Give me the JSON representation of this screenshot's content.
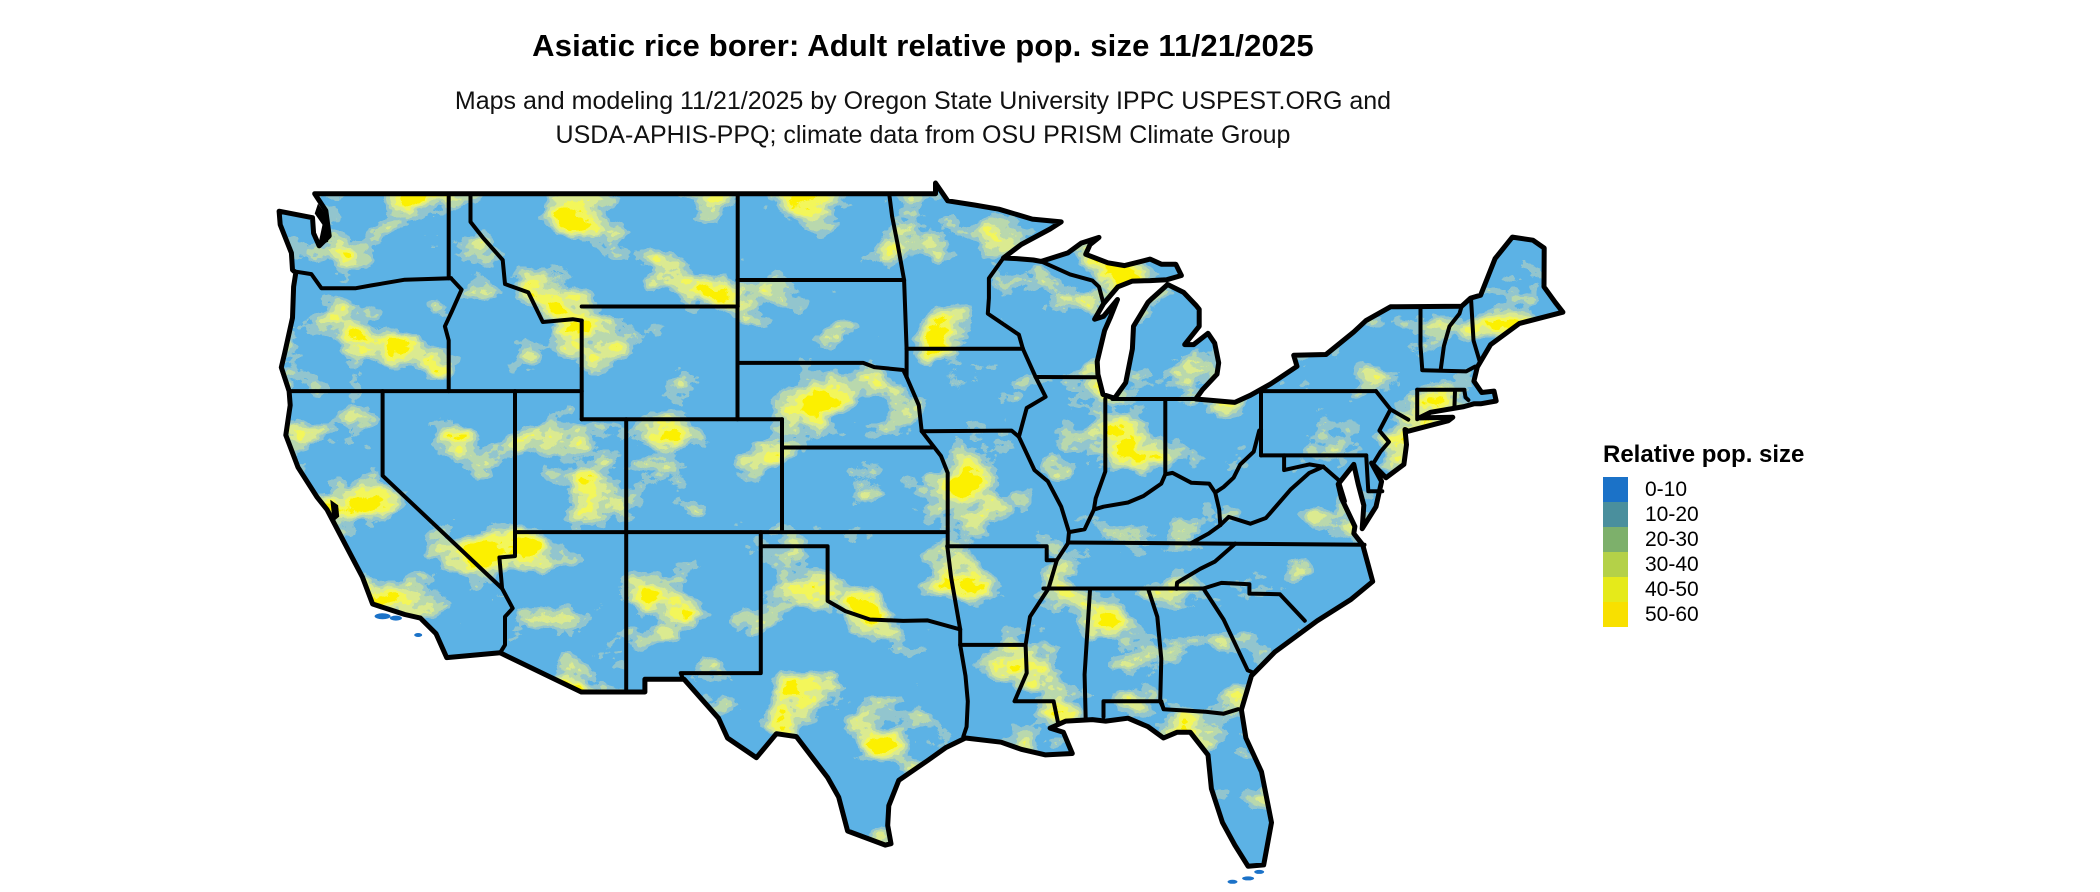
{
  "header": {
    "title": "Asiatic rice borer: Adult relative pop. size 11/21/2025",
    "subtitle_line1": "Maps and modeling 11/21/2025 by Oregon State University IPPC USPEST.ORG and",
    "subtitle_line2": "USDA-APHIS-PPQ; climate data from OSU PRISM Climate Group"
  },
  "legend": {
    "title": "Relative pop. size",
    "items": [
      {
        "label": "0-10",
        "color": "#1B72C8"
      },
      {
        "label": "10-20",
        "color": "#4A8F9D"
      },
      {
        "label": "20-30",
        "color": "#7DB06B"
      },
      {
        "label": "30-40",
        "color": "#B4D148"
      },
      {
        "label": "40-50",
        "color": "#E5EA1A"
      },
      {
        "label": "50-60",
        "color": "#F8E000"
      }
    ]
  },
  "map": {
    "region": "Contiguous United States",
    "base_color": "#1B72C8",
    "border_color": "#000000",
    "water_color": "#FFFFFF",
    "palette": [
      "#1B72C8",
      "#4A8F9D",
      "#7DB06B",
      "#B4D148",
      "#E5EA1A",
      "#F8E000"
    ]
  },
  "chart_data": {
    "type": "heatmap",
    "title": "Asiatic rice borer: Adult relative pop. size 11/21/2025",
    "legend_title": "Relative pop. size",
    "bins": [
      "0-10",
      "10-20",
      "20-30",
      "30-40",
      "40-50",
      "50-60"
    ],
    "bin_colors": [
      "#1B72C8",
      "#4A8F9D",
      "#7DB06B",
      "#B4D148",
      "#E5EA1A",
      "#F8E000"
    ],
    "region": "Contiguous United States choropleth raster; state boundaries in black"
  }
}
